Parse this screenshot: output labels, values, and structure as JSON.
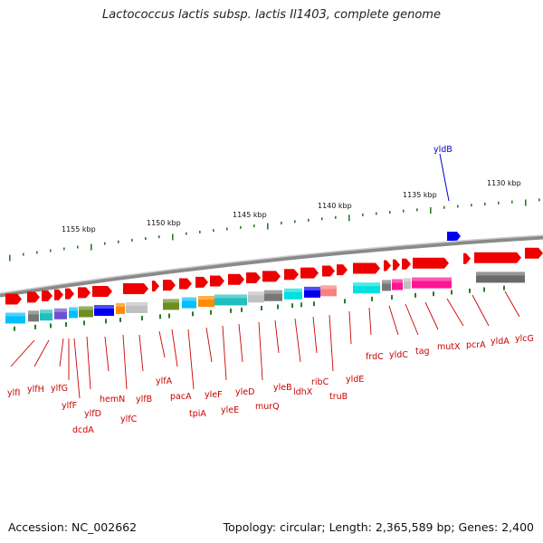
{
  "title": "Lactococcus lactis subsp. lactis Il1403, complete genome",
  "footer": {
    "accession": "Accession: NC_002662",
    "summary": "Topology: circular; Length: 2,365,589 bp; Genes: 2,400"
  },
  "kbp_ticks": [
    "1130 kbp",
    "1135 kbp",
    "1140 kbp",
    "1145 kbp",
    "1150 kbp",
    "1155 kbp"
  ],
  "gene_labels": [
    "ylfI",
    "ylfH",
    "ylfG",
    "ylfF",
    "dcdA",
    "ylfD",
    "hemN",
    "ylfC",
    "ylfB",
    "ylfA",
    "pacA",
    "tpiA",
    "ylеF",
    "yleE",
    "yleD",
    "murQ",
    "yleB",
    "ldhX",
    "ribC",
    "truB",
    "yldE",
    "frdC",
    "yldC",
    "tag",
    "mutX",
    "pcrA",
    "yldA",
    "ylcG"
  ],
  "top_gene_label": "yldB",
  "colors": {
    "forward_gene": "#ee0000",
    "backbone": "#8a8a8a",
    "tick": "#2a7a2a",
    "label": "#cc0000",
    "highlight": "#0000cc"
  }
}
